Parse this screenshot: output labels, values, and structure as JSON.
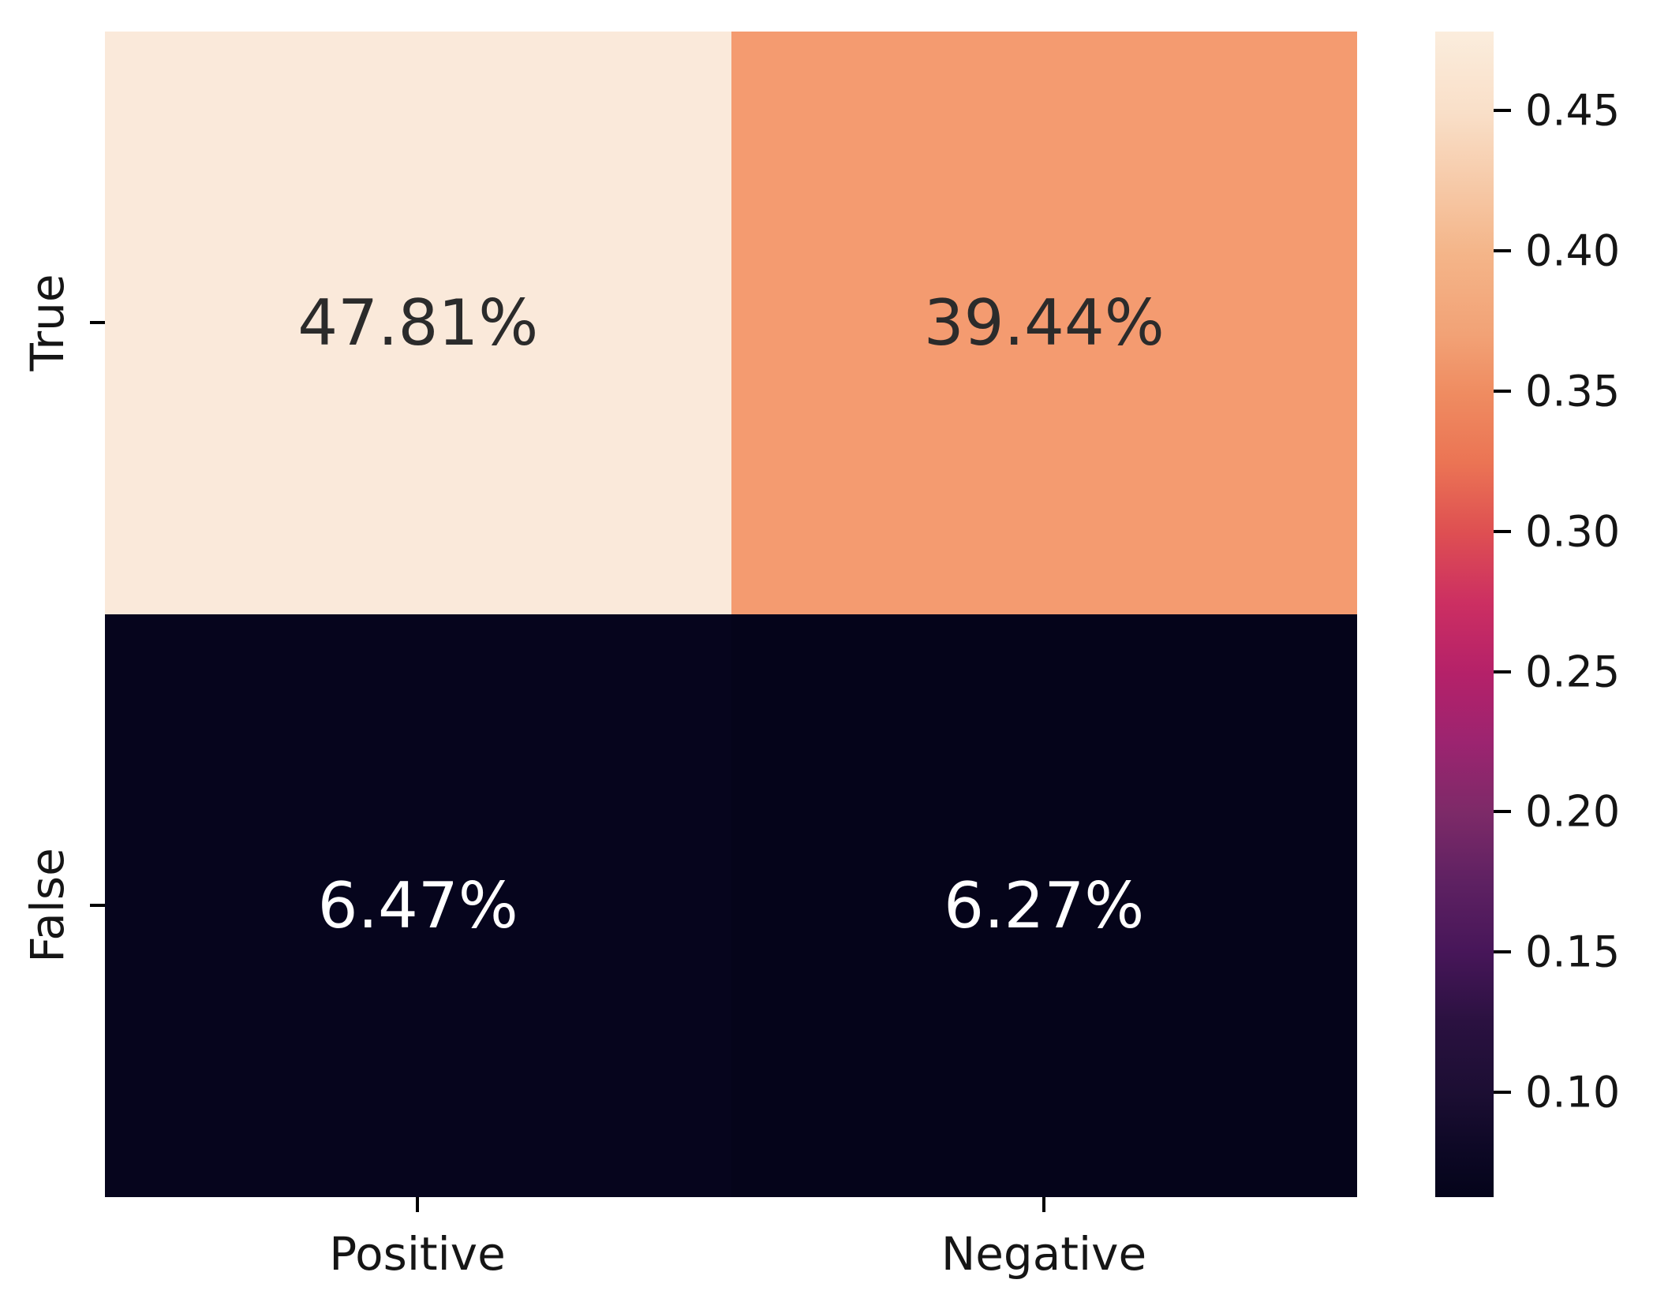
{
  "chart_data": {
    "type": "heatmap",
    "title": "",
    "xlabel": "",
    "ylabel": "",
    "categories_x": [
      "Positive",
      "Negative"
    ],
    "categories_y": [
      "True",
      "False"
    ],
    "series": [
      {
        "name": "True",
        "values": [
          47.81,
          39.44
        ]
      },
      {
        "name": "False",
        "values": [
          6.47,
          6.27
        ]
      }
    ],
    "cells": [
      {
        "row": "True",
        "col": "Positive",
        "label": "47.81%",
        "value": 0.4781,
        "bg": "#fae9da",
        "fg": "#2b2b2b"
      },
      {
        "row": "True",
        "col": "Negative",
        "label": "39.44%",
        "value": 0.3944,
        "bg": "#f49b70",
        "fg": "#2b2b2b"
      },
      {
        "row": "False",
        "col": "Positive",
        "label": "6.47%",
        "value": 0.0647,
        "bg": "#06051d",
        "fg": "#ffffff"
      },
      {
        "row": "False",
        "col": "Negative",
        "label": "6.27%",
        "value": 0.0627,
        "bg": "#05041a",
        "fg": "#ffffff"
      }
    ],
    "colorbar": {
      "colormap": "rocket",
      "vmin": 0.0627,
      "vmax": 0.4781,
      "ticks": [
        {
          "label": "0.45",
          "value": 0.45
        },
        {
          "label": "0.40",
          "value": 0.4
        },
        {
          "label": "0.35",
          "value": 0.35
        },
        {
          "label": "0.30",
          "value": 0.3
        },
        {
          "label": "0.25",
          "value": 0.25
        },
        {
          "label": "0.20",
          "value": 0.2
        },
        {
          "label": "0.15",
          "value": 0.15
        },
        {
          "label": "0.10",
          "value": 0.1
        }
      ],
      "gradient": [
        {
          "pos": 0,
          "color": "#fbeddd"
        },
        {
          "pos": 7,
          "color": "#f9dfc8"
        },
        {
          "pos": 19,
          "color": "#f4b589"
        },
        {
          "pos": 26,
          "color": "#f2a276"
        },
        {
          "pos": 31,
          "color": "#ef8c61"
        },
        {
          "pos": 37,
          "color": "#eb7454"
        },
        {
          "pos": 43,
          "color": "#de4f52"
        },
        {
          "pos": 49,
          "color": "#cc2f62"
        },
        {
          "pos": 55,
          "color": "#b52169"
        },
        {
          "pos": 61,
          "color": "#9c2470"
        },
        {
          "pos": 67,
          "color": "#7d2a68"
        },
        {
          "pos": 73,
          "color": "#5e2162"
        },
        {
          "pos": 79,
          "color": "#471659"
        },
        {
          "pos": 85,
          "color": "#2a1140"
        },
        {
          "pos": 91,
          "color": "#1c0e33"
        },
        {
          "pos": 96,
          "color": "#0d0825"
        },
        {
          "pos": 100,
          "color": "#04041a"
        }
      ]
    },
    "grid": false,
    "legend_position": "none",
    "axis_tick_color": "#000000",
    "text_color": "#151515"
  }
}
